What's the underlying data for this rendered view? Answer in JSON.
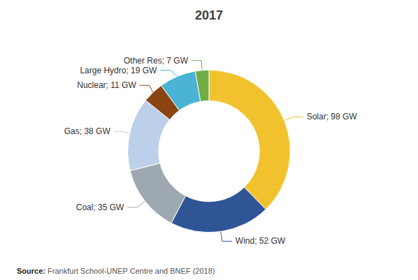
{
  "chart_data": {
    "type": "donut",
    "title": "2017",
    "categories": [
      "Solar",
      "Wind",
      "Coal",
      "Gas",
      "Nuclear",
      "Large Hydro",
      "Other Res"
    ],
    "values": [
      98,
      52,
      35,
      38,
      11,
      19,
      7
    ],
    "value_labels": [
      "Solar; 98 GW",
      "Wind; 52 GW",
      "Coal; 35 GW",
      "Gas; 38 GW",
      "Nuclear; 11 GW",
      "Large Hydro; 19 GW",
      "Other Res; 7 GW"
    ],
    "colors": [
      "#F2C12E",
      "#2F5597",
      "#9EA8B0",
      "#BDD0E9",
      "#8B4513",
      "#4BB3D4",
      "#70AD47"
    ],
    "data_labels": true,
    "annotations": [
      "Source: Frankfurt School-UNEP Centre and BNEF (2018)"
    ]
  }
}
